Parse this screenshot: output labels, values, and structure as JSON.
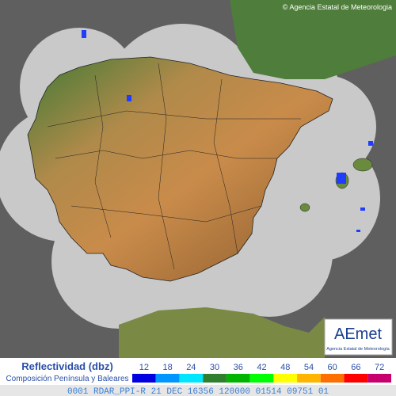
{
  "copyright": "© Agencia Estatal de Meteorologia",
  "logo": {
    "title": "AEmet",
    "subtitle": "Agencia Estatal de Meteorología"
  },
  "legend": {
    "title": "Reflectividad (dbz)",
    "subtitle": "Composición Península y Baleares",
    "items": [
      {
        "value": 12,
        "color": "#0000e0"
      },
      {
        "value": 18,
        "color": "#0096ff"
      },
      {
        "value": 24,
        "color": "#00e6ff"
      },
      {
        "value": 30,
        "color": "#2f7f2f"
      },
      {
        "value": 36,
        "color": "#00b400"
      },
      {
        "value": 42,
        "color": "#00ff00"
      },
      {
        "value": 48,
        "color": "#ffff00"
      },
      {
        "value": 54,
        "color": "#ffb400"
      },
      {
        "value": 60,
        "color": "#ff6e00"
      },
      {
        "value": 66,
        "color": "#ff0000"
      },
      {
        "value": 72,
        "color": "#c8006e"
      }
    ]
  },
  "status_line": "0001 RDAR_PPI-R   21 DEC 16356 120000 01514 09751 01"
}
